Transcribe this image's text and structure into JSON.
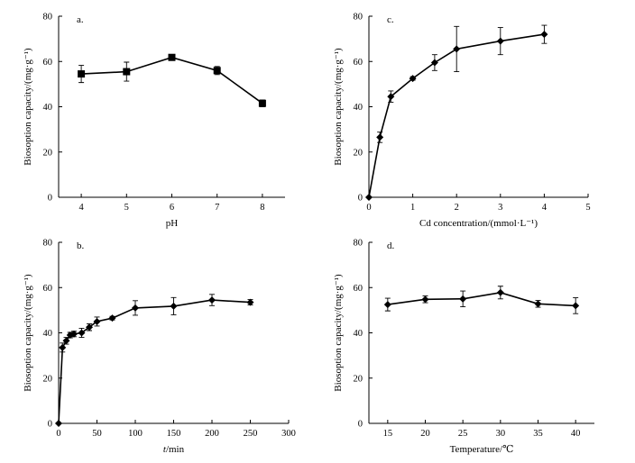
{
  "chart_data": [
    {
      "id": "a",
      "type": "line",
      "panel_label": "a.",
      "marker": "square",
      "xlabel": "pH",
      "ylabel": "Biosoption capacity/(mg·g⁻¹)",
      "xlim": [
        3.5,
        8.5
      ],
      "ylim": [
        0,
        80
      ],
      "xticks": [
        4,
        5,
        6,
        7,
        8
      ],
      "yticks": [
        0,
        20,
        40,
        60,
        80
      ],
      "x": [
        4,
        5,
        6,
        7,
        8
      ],
      "y": [
        54.5,
        55.5,
        61.8,
        56,
        41.5
      ],
      "err": [
        3.8,
        4.2,
        1.2,
        1.8,
        1.5
      ]
    },
    {
      "id": "b",
      "type": "line",
      "panel_label": "b.",
      "marker": "diamond",
      "xlabel": "t/min",
      "ylabel": "Biosoption capacity/(mg·g⁻¹)",
      "xlim": [
        0,
        300
      ],
      "ylim": [
        0,
        80
      ],
      "xticks": [
        0,
        50,
        100,
        150,
        200,
        250,
        300
      ],
      "yticks": [
        0,
        20,
        40,
        60,
        80
      ],
      "x": [
        0,
        5,
        10,
        15,
        20,
        30,
        40,
        50,
        70,
        100,
        150,
        200,
        250
      ],
      "y": [
        0,
        33.5,
        36.5,
        39,
        39.5,
        40,
        42.5,
        45,
        46.5,
        51,
        51.8,
        54.5,
        53.5
      ],
      "err": [
        0,
        2,
        1.5,
        1.2,
        1.2,
        2,
        1.5,
        2,
        0.8,
        3.2,
        3.8,
        2.5,
        1.2
      ]
    },
    {
      "id": "c",
      "type": "line",
      "panel_label": "c.",
      "marker": "diamond",
      "xlabel": "Cd concentration/(mmol·L⁻¹)",
      "ylabel": "Biosoption capacity/(mg·g⁻¹)",
      "xlim": [
        0,
        5
      ],
      "ylim": [
        0,
        80
      ],
      "xticks": [
        0,
        1,
        2,
        3,
        4,
        5
      ],
      "yticks": [
        0,
        20,
        40,
        60,
        80
      ],
      "x": [
        0,
        0.25,
        0.5,
        1,
        1.5,
        2,
        3,
        4
      ],
      "y": [
        0,
        26.5,
        44.5,
        52.5,
        59.5,
        65.5,
        69,
        72
      ],
      "err": [
        0,
        2.3,
        2.5,
        0.8,
        3.5,
        10,
        6,
        4
      ]
    },
    {
      "id": "d",
      "type": "line",
      "panel_label": "d.",
      "marker": "diamond",
      "xlabel": "Temperature/℃",
      "ylabel": "Biosoption capacity/(mg·g⁻¹)",
      "xlim": [
        12.5,
        42.5
      ],
      "ylim": [
        0,
        80
      ],
      "xticks": [
        15,
        20,
        25,
        30,
        35,
        40
      ],
      "yticks": [
        0,
        20,
        40,
        60,
        80
      ],
      "x": [
        15,
        20,
        25,
        30,
        35,
        40
      ],
      "y": [
        52.5,
        54.8,
        55,
        57.8,
        52.8,
        52
      ],
      "err": [
        2.8,
        1.5,
        3.5,
        2.8,
        1.5,
        3.5
      ]
    }
  ]
}
